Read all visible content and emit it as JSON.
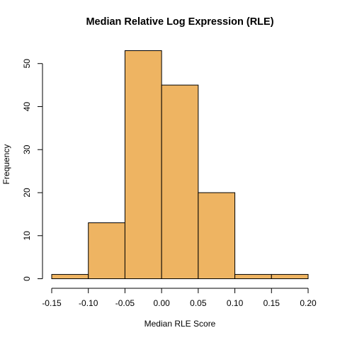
{
  "chart_data": {
    "type": "bar",
    "subtype": "histogram",
    "title": "Median Relative Log Expression (RLE)",
    "xlabel": "Median RLE Score",
    "ylabel": "Frequency",
    "bins": [
      {
        "start": -0.15,
        "end": -0.1,
        "count": 1
      },
      {
        "start": -0.1,
        "end": -0.05,
        "count": 13
      },
      {
        "start": -0.05,
        "end": 0.0,
        "count": 53
      },
      {
        "start": 0.0,
        "end": 0.05,
        "count": 45
      },
      {
        "start": 0.05,
        "end": 0.1,
        "count": 20
      },
      {
        "start": 0.1,
        "end": 0.15,
        "count": 1
      },
      {
        "start": 0.15,
        "end": 0.2,
        "count": 1
      }
    ],
    "xlim": [
      -0.15,
      0.2
    ],
    "ylim": [
      0,
      53
    ],
    "x_ticks": [
      -0.15,
      -0.1,
      -0.05,
      0.0,
      0.05,
      0.1,
      0.15,
      0.2
    ],
    "x_tick_labels": [
      "-0.15",
      "-0.10",
      "-0.05",
      "0.00",
      "0.05",
      "0.10",
      "0.15",
      "0.20"
    ],
    "y_ticks": [
      0,
      10,
      20,
      30,
      40,
      50
    ],
    "y_tick_labels": [
      "0",
      "10",
      "20",
      "30",
      "40",
      "50"
    ],
    "bar_color": "#EEB462",
    "bar_border_color": "#000000",
    "grid": false,
    "legend": "none"
  }
}
